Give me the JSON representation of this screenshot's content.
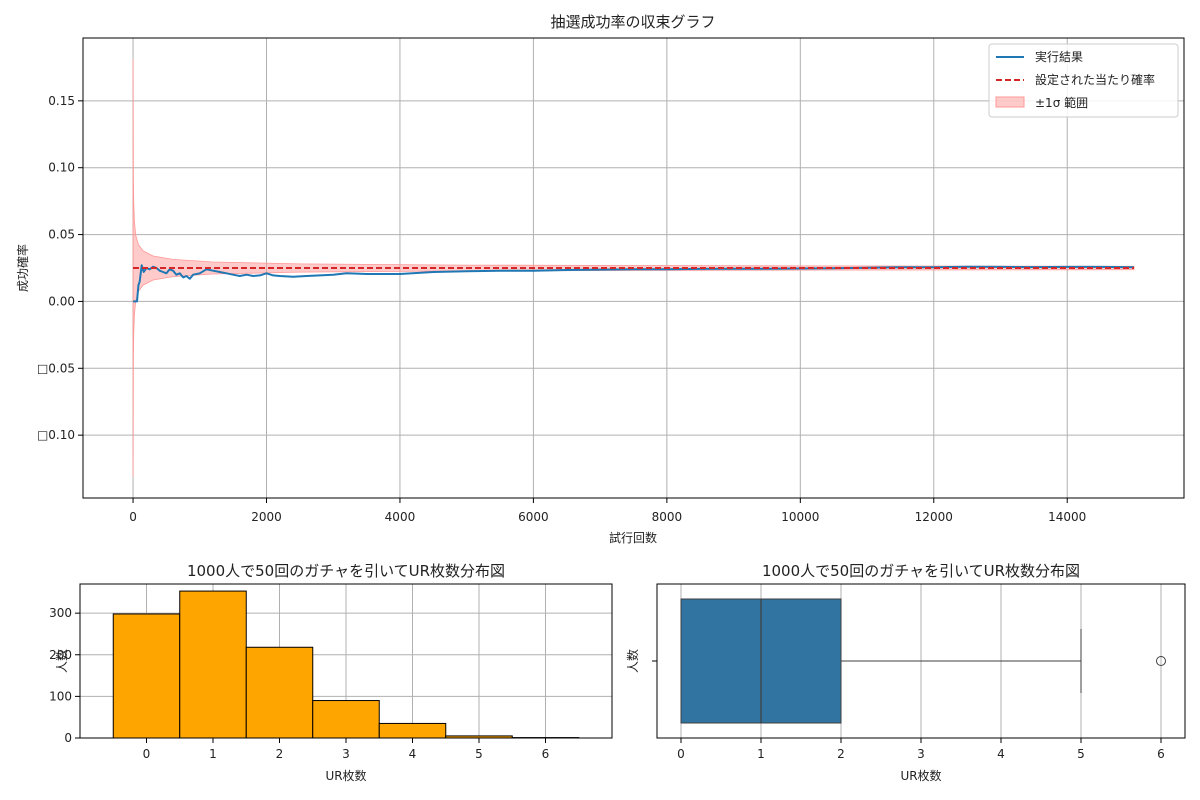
{
  "chart_data": [
    {
      "type": "line",
      "title": "抽選成功率の収束グラフ",
      "xlabel": "試行回数",
      "ylabel": "成功確率",
      "xlim": [
        -750,
        15750
      ],
      "ylim": [
        -0.147,
        0.197
      ],
      "xticks": [
        0,
        2000,
        4000,
        6000,
        8000,
        10000,
        12000,
        14000
      ],
      "xtick_labels": [
        "0",
        "2000",
        "4000",
        "6000",
        "8000",
        "10000",
        "12000",
        "14000"
      ],
      "yticks": [
        -0.1,
        -0.05,
        0.0,
        0.05,
        0.1,
        0.15
      ],
      "ytick_labels": [
        "□0.10",
        "□0.05",
        "0.00",
        "0.05",
        "0.10",
        "0.15"
      ],
      "grid": true,
      "legend_position": "top-right",
      "target_probability": 0.025,
      "series": [
        {
          "name": "実行結果",
          "color": "#1f77b4",
          "x": [
            1,
            60,
            80,
            100,
            130,
            160,
            200,
            250,
            300,
            350,
            400,
            450,
            500,
            550,
            600,
            650,
            700,
            750,
            800,
            850,
            900,
            1000,
            1100,
            1200,
            1300,
            1400,
            1500,
            1600,
            1700,
            1800,
            1900,
            2000,
            2100,
            2200,
            2400,
            2600,
            2800,
            3000,
            3200,
            3500,
            4000,
            4500,
            5000,
            5500,
            6000,
            6500,
            7000,
            7500,
            8000,
            8500,
            9000,
            9500,
            10000,
            10500,
            11000,
            11500,
            12000,
            12500,
            13000,
            13500,
            14000,
            14500,
            15000
          ],
          "y": [
            0.0,
            0.0,
            0.012,
            0.015,
            0.027,
            0.022,
            0.025,
            0.024,
            0.026,
            0.025,
            0.023,
            0.022,
            0.021,
            0.024,
            0.023,
            0.02,
            0.021,
            0.018,
            0.019,
            0.017,
            0.02,
            0.021,
            0.024,
            0.023,
            0.022,
            0.021,
            0.02,
            0.019,
            0.02,
            0.019,
            0.0195,
            0.021,
            0.0195,
            0.019,
            0.0185,
            0.019,
            0.0195,
            0.02,
            0.021,
            0.0205,
            0.0205,
            0.022,
            0.0225,
            0.023,
            0.023,
            0.0235,
            0.0238,
            0.024,
            0.024,
            0.0243,
            0.0245,
            0.0245,
            0.0246,
            0.0248,
            0.0252,
            0.0255,
            0.0256,
            0.026,
            0.0258,
            0.0257,
            0.0258,
            0.0258,
            0.0256
          ]
        },
        {
          "name": "設定された当たり確率",
          "color": "#d62728",
          "style": "dashed",
          "x": [
            0,
            15000
          ],
          "y": [
            0.025,
            0.025
          ]
        }
      ],
      "band": {
        "name": "±1σ 範囲",
        "color": "#ff9896",
        "x": [
          1,
          5,
          10,
          20,
          40,
          80,
          150,
          300,
          600,
          1200,
          2500,
          5000,
          10000,
          15000
        ],
        "lower": [
          -0.131,
          -0.045,
          -0.025,
          -0.01,
          0.0003,
          0.0075,
          0.0122,
          0.016,
          0.0186,
          0.0205,
          0.0219,
          0.0228,
          0.0234,
          0.0237
        ],
        "upper": [
          0.181,
          0.095,
          0.075,
          0.06,
          0.0497,
          0.0425,
          0.0378,
          0.034,
          0.0314,
          0.0295,
          0.0281,
          0.0272,
          0.0266,
          0.0263
        ]
      }
    },
    {
      "type": "bar",
      "title": "1000人で50回のガチャを引いてUR枚数分布図",
      "xlabel": "UR枚数",
      "ylabel": "人数",
      "categories": [
        "0",
        "1",
        "2",
        "3",
        "4",
        "5",
        "6"
      ],
      "values": [
        298,
        353,
        218,
        90,
        35,
        5,
        1
      ],
      "xlim": [
        -1.0,
        7.0
      ],
      "ylim": [
        0,
        370
      ],
      "yticks": [
        0,
        100,
        200,
        300
      ],
      "bar_color": "#ffa500",
      "edge_color": "#000000",
      "grid": true
    },
    {
      "type": "box",
      "title": "1000人で50回のガチャを引いてUR枚数分布図",
      "xlabel": "UR枚数",
      "ylabel": "人数",
      "xlim": [
        -0.3,
        6.3
      ],
      "xticks": [
        0,
        1,
        2,
        3,
        4,
        5,
        6
      ],
      "min": 0,
      "q1": 0,
      "median": 1,
      "q3": 2,
      "whisker_high": 5,
      "outliers": [
        6
      ],
      "box_color": "#3274a1",
      "grid": true
    }
  ]
}
